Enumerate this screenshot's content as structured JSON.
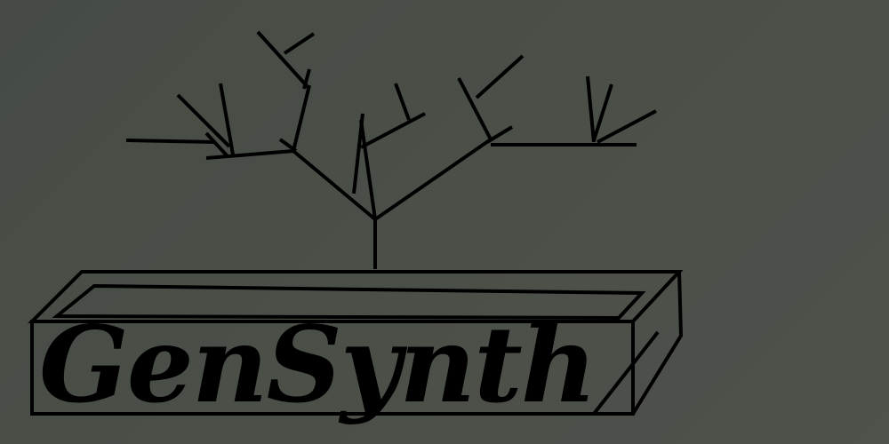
{
  "logo": {
    "brand_name": "GenSynth",
    "ink_color": "#000000",
    "background_color": "#484d46"
  },
  "icons": {
    "tree": "branching-tree-icon",
    "planter": "planter-box-icon"
  }
}
